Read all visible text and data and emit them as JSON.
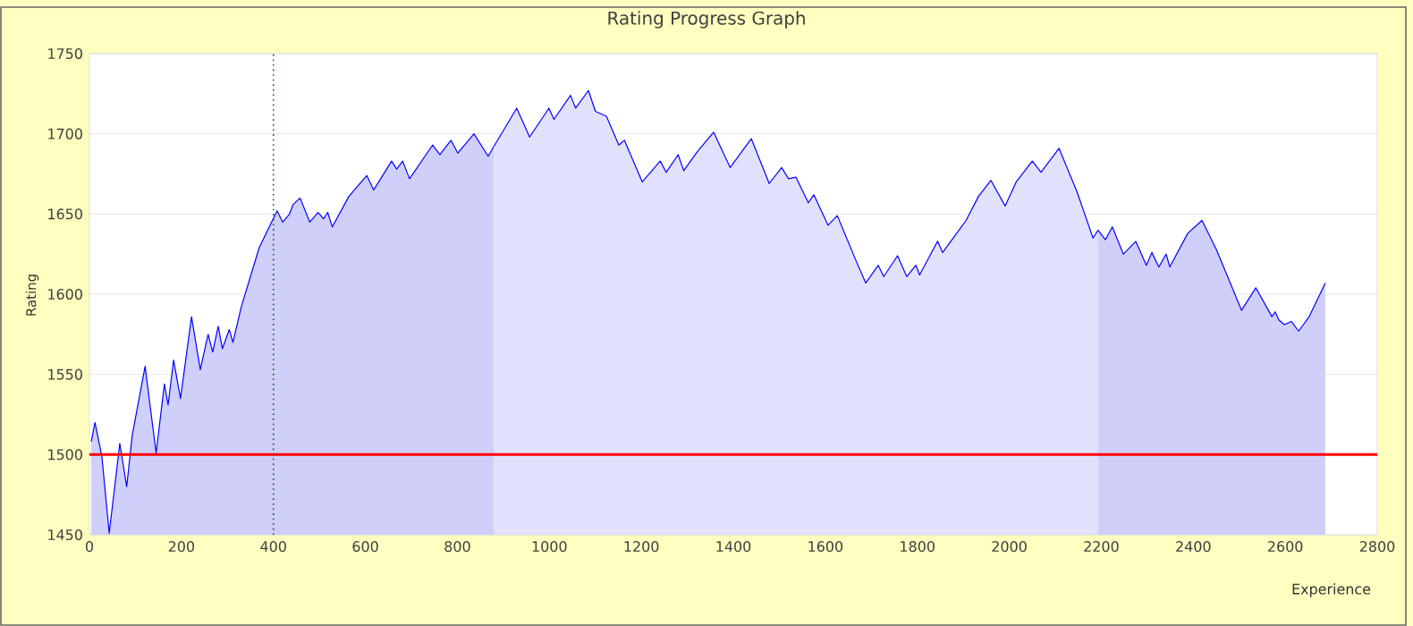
{
  "chart_data": {
    "type": "area",
    "title": "Rating Progress Graph",
    "xlabel": "Experience",
    "ylabel": "Rating",
    "xlim": [
      0,
      2800
    ],
    "xticks": [
      0,
      200,
      400,
      600,
      800,
      1000,
      1200,
      1400,
      1600,
      1800,
      2000,
      2200,
      2400,
      2600,
      2800
    ],
    "ylim": [
      1450,
      1750
    ],
    "yticks": [
      1450,
      1500,
      1550,
      1600,
      1650,
      1700,
      1750
    ],
    "grid": "y",
    "series": [
      {
        "color": "#cfcffa",
        "x": [
          4,
          12,
          27,
          43,
          66,
          81,
          93,
          121,
          145,
          163,
          171,
          183,
          198,
          222,
          241,
          258,
          268,
          280,
          289,
          304,
          312,
          330,
          369,
          408,
          420,
          435,
          443,
          458,
          479,
          497,
          509,
          518,
          528,
          564,
          603,
          618,
          657,
          668,
          681,
          696,
          746,
          762,
          786,
          801,
          836,
          867,
          879
        ],
        "values": [
          1508,
          1520,
          1499,
          1451,
          1507,
          1480,
          1512,
          1555,
          1501,
          1544,
          1531,
          1559,
          1535,
          1586,
          1553,
          1575,
          1564,
          1580,
          1566,
          1578,
          1570,
          1592,
          1629,
          1652,
          1645,
          1650,
          1656,
          1660,
          1645,
          1651,
          1647,
          1651,
          1642,
          1661,
          1674,
          1665,
          1683,
          1678,
          1683,
          1672,
          1693,
          1687,
          1696,
          1688,
          1700,
          1686,
          1692
        ]
      },
      {
        "color": "#e1e1fb",
        "x": [
          879,
          929,
          957,
          999,
          1010,
          1046,
          1057,
          1085,
          1100,
          1124,
          1151,
          1163,
          1202,
          1241,
          1254,
          1280,
          1292,
          1322,
          1357,
          1393,
          1439,
          1478,
          1505,
          1520,
          1536,
          1563,
          1575,
          1606,
          1626,
          1668,
          1688,
          1715,
          1727,
          1757,
          1777,
          1797,
          1805,
          1844,
          1855,
          1906,
          1933,
          1960,
          1991,
          2015,
          2050,
          2069,
          2108,
          2147,
          2182,
          2193
        ],
        "values": [
          1692,
          1716,
          1698,
          1716,
          1709,
          1724,
          1716,
          1727,
          1714,
          1711,
          1693,
          1696,
          1670,
          1683,
          1676,
          1687,
          1677,
          1689,
          1701,
          1679,
          1697,
          1669,
          1679,
          1672,
          1673,
          1657,
          1662,
          1643,
          1649,
          1620,
          1607,
          1618,
          1611,
          1624,
          1611,
          1618,
          1612,
          1633,
          1626,
          1646,
          1661,
          1671,
          1655,
          1670,
          1683,
          1676,
          1691,
          1664,
          1635,
          1640
        ]
      },
      {
        "color": "#cfcffa",
        "x": [
          2193,
          2209,
          2224,
          2248,
          2275,
          2298,
          2310,
          2325,
          2341,
          2349,
          2388,
          2419,
          2450,
          2505,
          2536,
          2571,
          2578,
          2586,
          2598,
          2613,
          2629,
          2652,
          2687
        ],
        "values": [
          1640,
          1634,
          1642,
          1625,
          1633,
          1618,
          1626,
          1617,
          1625,
          1617,
          1638,
          1646,
          1628,
          1590,
          1604,
          1586,
          1589,
          1584,
          1581,
          1583,
          1577,
          1586,
          1607
        ]
      }
    ],
    "ref_lines": [
      {
        "axis": "y",
        "value": 1500,
        "color": "#ff0000",
        "line_style": "solid"
      },
      {
        "axis": "x",
        "value": 400,
        "color": "#006400",
        "line_style": "dotted"
      }
    ]
  }
}
